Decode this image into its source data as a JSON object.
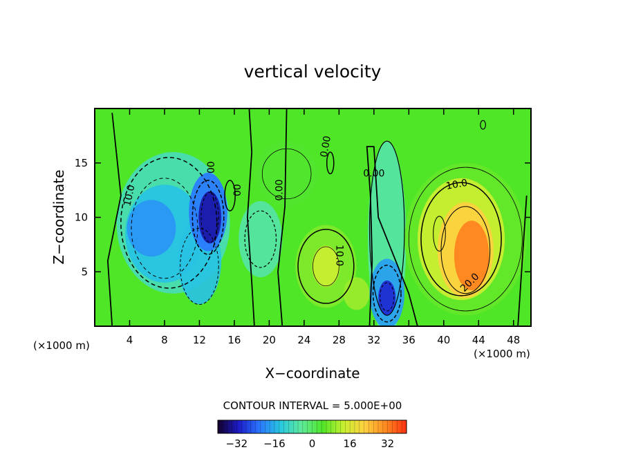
{
  "chart_data": {
    "type": "heatmap",
    "title": "vertical velocity",
    "xlabel": "X−coordinate",
    "ylabel": "Z−coordinate",
    "x_unit_label": "(×1000 m)",
    "z_unit_label": "(×1000 m)",
    "xlim": [
      0,
      50
    ],
    "ylim": [
      0,
      20
    ],
    "x_ticks": [
      "4",
      "8",
      "12",
      "16",
      "20",
      "24",
      "28",
      "32",
      "36",
      "40",
      "44",
      "48"
    ],
    "y_ticks": [
      "5",
      "10",
      "15"
    ],
    "contour_interval_text": "CONTOUR INTERVAL = 5.000E+00",
    "contour_labels": [
      "10.0",
      "00",
      "00",
      "0.00",
      "0.00",
      "0.00",
      "10.0",
      "10.0",
      "20.0"
    ],
    "colorbar_ticks": [
      "−32",
      "−16",
      "0",
      "16",
      "32"
    ],
    "colorbar_range": [
      -40,
      40
    ],
    "features": [
      {
        "x": 8,
        "z": 9,
        "w": -17,
        "note": "broad downdraft"
      },
      {
        "x": 13,
        "z": 10,
        "w": -33,
        "note": "strong downdraft core"
      },
      {
        "x": 33.5,
        "z": 2.8,
        "w": -30,
        "note": "low-level downdraft core"
      },
      {
        "x": 42.5,
        "z": 6.5,
        "w": 32,
        "note": "main updraft core"
      },
      {
        "x": 26.5,
        "z": 5.5,
        "w": 14,
        "note": "secondary updraft"
      },
      {
        "x": 22,
        "z": 14,
        "w": 4,
        "note": "weak updraft"
      }
    ],
    "colormap": [
      "#14002a",
      "#1c1cc8",
      "#2a78ff",
      "#28c8e0",
      "#5eea9a",
      "#50e628",
      "#c8f030",
      "#ffd040",
      "#ff8a20",
      "#ff3010"
    ],
    "grid": false,
    "legend": "colorbar-bottom"
  }
}
